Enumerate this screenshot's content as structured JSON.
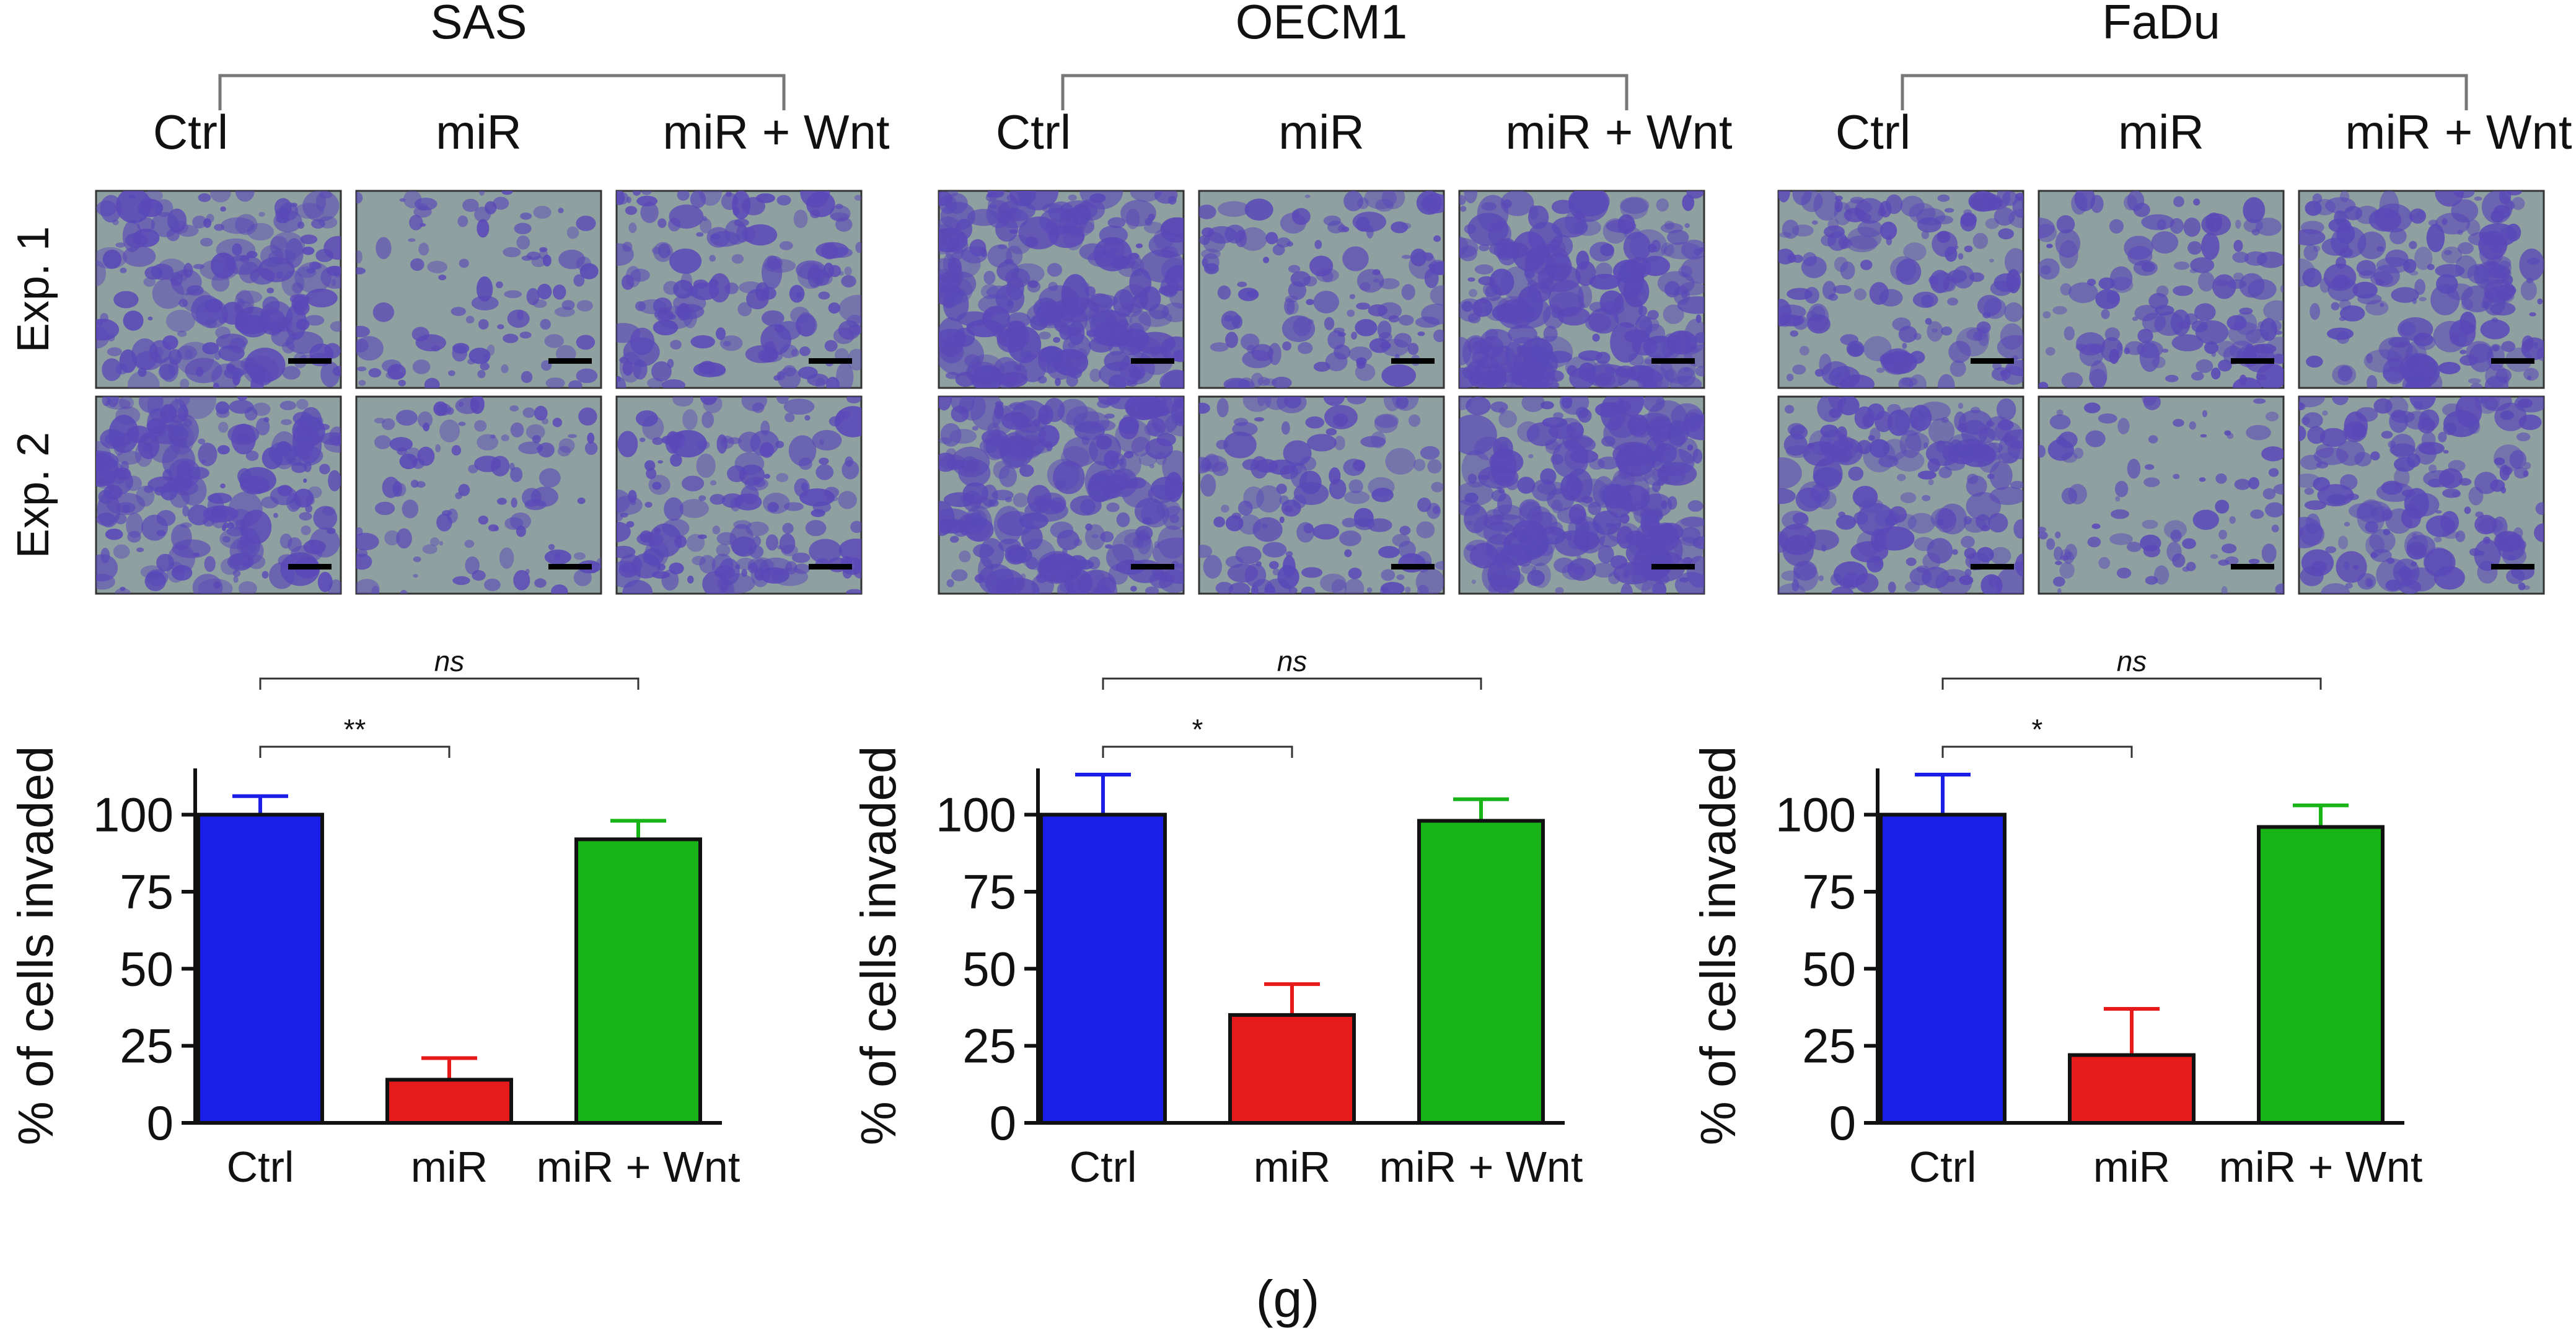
{
  "figure": {
    "panel_label": "(g)",
    "row_labels": [
      "Exp. 1",
      "Exp. 2"
    ],
    "scale_bar_color": "#000000",
    "stain_color": "#5a48b8",
    "background_color": "#8fa0a0"
  },
  "colors": {
    "Ctrl": "#1a1ee6",
    "miR": "#e61a1a",
    "miR + Wnt": "#17b317"
  },
  "chart_data": [
    {
      "type": "bar",
      "cell_line": "SAS",
      "categories": [
        "Ctrl",
        "miR",
        "miR + Wnt"
      ],
      "values": [
        100,
        14,
        92
      ],
      "errors": [
        6,
        7,
        6
      ],
      "ylabel": "% of cells invaded",
      "ylim": [
        0,
        115
      ],
      "yticks": [
        0,
        25,
        50,
        75,
        100
      ],
      "significance": [
        {
          "from": "Ctrl",
          "to": "miR",
          "label": "**"
        },
        {
          "from": "Ctrl",
          "to": "miR + Wnt",
          "label": "ns"
        }
      ],
      "micrograph_density": {
        "exp1": [
          0.55,
          0.22,
          0.45
        ],
        "exp2": [
          0.6,
          0.25,
          0.45
        ]
      }
    },
    {
      "type": "bar",
      "cell_line": "OECM1",
      "categories": [
        "Ctrl",
        "miR",
        "miR + Wnt"
      ],
      "values": [
        100,
        35,
        98
      ],
      "errors": [
        13,
        10,
        7
      ],
      "ylabel": "% of cells invaded",
      "ylim": [
        0,
        115
      ],
      "yticks": [
        0,
        25,
        50,
        75,
        100
      ],
      "significance": [
        {
          "from": "Ctrl",
          "to": "miR",
          "label": "*"
        },
        {
          "from": "Ctrl",
          "to": "miR + Wnt",
          "label": "ns"
        }
      ],
      "micrograph_density": {
        "exp1": [
          0.7,
          0.35,
          0.65
        ],
        "exp2": [
          0.72,
          0.35,
          0.7
        ]
      }
    },
    {
      "type": "bar",
      "cell_line": "FaDu",
      "categories": [
        "Ctrl",
        "miR",
        "miR + Wnt"
      ],
      "values": [
        100,
        22,
        96
      ],
      "errors": [
        13,
        15,
        7
      ],
      "ylabel": "% of cells invaded",
      "ylim": [
        0,
        115
      ],
      "yticks": [
        0,
        25,
        50,
        75,
        100
      ],
      "significance": [
        {
          "from": "Ctrl",
          "to": "miR",
          "label": "*"
        },
        {
          "from": "Ctrl",
          "to": "miR + Wnt",
          "label": "ns"
        }
      ],
      "micrograph_density": {
        "exp1": [
          0.45,
          0.35,
          0.5
        ],
        "exp2": [
          0.5,
          0.18,
          0.5
        ]
      }
    }
  ]
}
